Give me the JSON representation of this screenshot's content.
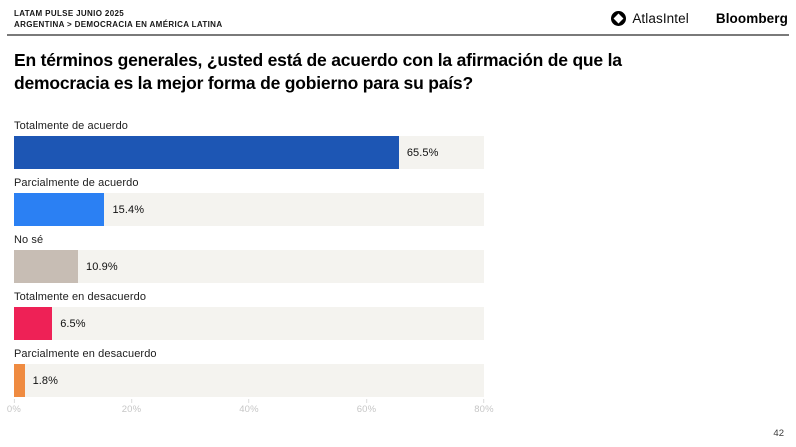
{
  "header": {
    "report_title": "LATAM PULSE JUNIO 2025",
    "breadcrumb": "ARGENTINA > DEMOCRACIA EN AMÉRICA LATINA",
    "logos": {
      "atlasintel": "AtlasIntel",
      "bloomberg": "Bloomberg"
    }
  },
  "chart_data": {
    "type": "bar",
    "orientation": "horizontal",
    "title": "En términos generales, ¿usted está de acuerdo con la afirmación de que la democracia es la mejor forma de gobierno para su país?",
    "categories": [
      "Totalmente de acuerdo",
      "Parcialmente de acuerdo",
      "No sé",
      "Totalmente en desacuerdo",
      "Parcialmente en desacuerdo"
    ],
    "values": [
      65.5,
      15.4,
      10.9,
      6.5,
      1.8
    ],
    "value_labels": [
      "65.5%",
      "15.4%",
      "10.9%",
      "6.5%",
      "1.8%"
    ],
    "bar_colors": [
      "#1d56b4",
      "#2b80f3",
      "#c7bdb4",
      "#ee2156",
      "#ef8b41"
    ],
    "track_color": "#f4f3ef",
    "xlim": [
      0,
      80
    ],
    "x_ticks": [
      "0%",
      "20%",
      "40%",
      "60%",
      "80%"
    ],
    "x_tick_values": [
      0,
      20,
      40,
      60,
      80
    ],
    "grid": false,
    "legend": false
  },
  "footer": {
    "page_number": "42"
  }
}
